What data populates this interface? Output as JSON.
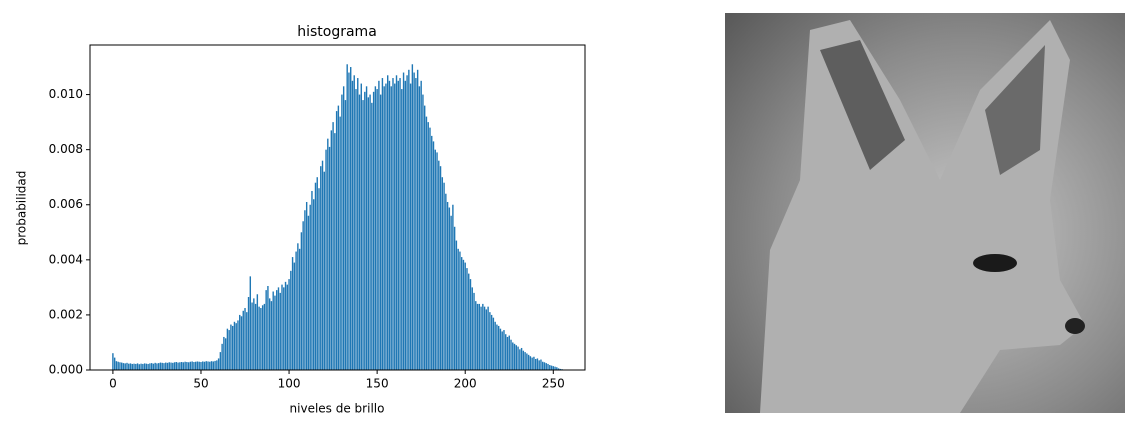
{
  "chart_data": {
    "type": "bar",
    "title": "histograma",
    "xlabel": "niveles de brillo",
    "ylabel": "probabilidad",
    "color": "#1f77b4",
    "x": [
      0,
      1,
      2,
      3,
      4,
      5,
      6,
      7,
      8,
      9,
      10,
      11,
      12,
      13,
      14,
      15,
      16,
      17,
      18,
      19,
      20,
      21,
      22,
      23,
      24,
      25,
      26,
      27,
      28,
      29,
      30,
      31,
      32,
      33,
      34,
      35,
      36,
      37,
      38,
      39,
      40,
      41,
      42,
      43,
      44,
      45,
      46,
      47,
      48,
      49,
      50,
      51,
      52,
      53,
      54,
      55,
      56,
      57,
      58,
      59,
      60,
      61,
      62,
      63,
      64,
      65,
      66,
      67,
      68,
      69,
      70,
      71,
      72,
      73,
      74,
      75,
      76,
      77,
      78,
      79,
      80,
      81,
      82,
      83,
      84,
      85,
      86,
      87,
      88,
      89,
      90,
      91,
      92,
      93,
      94,
      95,
      96,
      97,
      98,
      99,
      100,
      101,
      102,
      103,
      104,
      105,
      106,
      107,
      108,
      109,
      110,
      111,
      112,
      113,
      114,
      115,
      116,
      117,
      118,
      119,
      120,
      121,
      122,
      123,
      124,
      125,
      126,
      127,
      128,
      129,
      130,
      131,
      132,
      133,
      134,
      135,
      136,
      137,
      138,
      139,
      140,
      141,
      142,
      143,
      144,
      145,
      146,
      147,
      148,
      149,
      150,
      151,
      152,
      153,
      154,
      155,
      156,
      157,
      158,
      159,
      160,
      161,
      162,
      163,
      164,
      165,
      166,
      167,
      168,
      169,
      170,
      171,
      172,
      173,
      174,
      175,
      176,
      177,
      178,
      179,
      180,
      181,
      182,
      183,
      184,
      185,
      186,
      187,
      188,
      189,
      190,
      191,
      192,
      193,
      194,
      195,
      196,
      197,
      198,
      199,
      200,
      201,
      202,
      203,
      204,
      205,
      206,
      207,
      208,
      209,
      210,
      211,
      212,
      213,
      214,
      215,
      216,
      217,
      218,
      219,
      220,
      221,
      222,
      223,
      224,
      225,
      226,
      227,
      228,
      229,
      230,
      231,
      232,
      233,
      234,
      235,
      236,
      237,
      238,
      239,
      240,
      241,
      242,
      243,
      244,
      245,
      246,
      247,
      248,
      249,
      250,
      251,
      252,
      253,
      254,
      255
    ],
    "values": [
      0.00061,
      0.00045,
      0.00032,
      0.0003,
      0.00028,
      0.00027,
      0.00025,
      0.00024,
      0.00026,
      0.00023,
      0.00024,
      0.00022,
      0.00023,
      0.00022,
      0.00024,
      0.00021,
      0.00023,
      0.00022,
      0.00024,
      0.00023,
      0.00022,
      0.00024,
      0.00025,
      0.00023,
      0.00026,
      0.00024,
      0.00025,
      0.00027,
      0.00026,
      0.00025,
      0.00027,
      0.00026,
      0.00028,
      0.00027,
      0.00026,
      0.00028,
      0.00029,
      0.00027,
      0.00028,
      0.00029,
      0.00028,
      0.0003,
      0.00029,
      0.00028,
      0.0003,
      0.00031,
      0.00029,
      0.0003,
      0.00031,
      0.0003,
      0.00029,
      0.00031,
      0.0003,
      0.00032,
      0.00031,
      0.0003,
      0.00032,
      0.00031,
      0.00033,
      0.00035,
      0.00042,
      0.00065,
      0.00095,
      0.0012,
      0.00115,
      0.0015,
      0.00145,
      0.00165,
      0.0016,
      0.00175,
      0.0017,
      0.0018,
      0.002,
      0.00195,
      0.00215,
      0.00225,
      0.0021,
      0.00265,
      0.0034,
      0.00245,
      0.0026,
      0.0024,
      0.00275,
      0.0023,
      0.00225,
      0.00235,
      0.0024,
      0.0029,
      0.00305,
      0.0026,
      0.0025,
      0.00285,
      0.0027,
      0.0029,
      0.003,
      0.0028,
      0.0031,
      0.003,
      0.0032,
      0.0031,
      0.0033,
      0.0036,
      0.0041,
      0.0039,
      0.0043,
      0.0046,
      0.0044,
      0.005,
      0.0054,
      0.0058,
      0.0061,
      0.0056,
      0.006,
      0.0065,
      0.0062,
      0.0068,
      0.007,
      0.0066,
      0.0074,
      0.0076,
      0.0072,
      0.008,
      0.0084,
      0.0081,
      0.0087,
      0.009,
      0.0086,
      0.0094,
      0.0096,
      0.0092,
      0.01,
      0.0103,
      0.0098,
      0.0111,
      0.0108,
      0.011,
      0.0105,
      0.0107,
      0.0102,
      0.0106,
      0.01,
      0.0104,
      0.0098,
      0.0101,
      0.0103,
      0.0099,
      0.01,
      0.0097,
      0.0101,
      0.0103,
      0.0102,
      0.0105,
      0.01,
      0.0106,
      0.0103,
      0.0104,
      0.0107,
      0.0105,
      0.0103,
      0.0106,
      0.0104,
      0.0107,
      0.0105,
      0.0106,
      0.0102,
      0.0108,
      0.0105,
      0.0107,
      0.0109,
      0.0104,
      0.0111,
      0.0108,
      0.0106,
      0.0109,
      0.0103,
      0.0105,
      0.01,
      0.0096,
      0.0092,
      0.009,
      0.0088,
      0.0085,
      0.0083,
      0.008,
      0.0079,
      0.0076,
      0.0074,
      0.007,
      0.0068,
      0.0064,
      0.0061,
      0.0059,
      0.0056,
      0.006,
      0.0052,
      0.0047,
      0.0044,
      0.0043,
      0.0041,
      0.004,
      0.0039,
      0.0037,
      0.0035,
      0.0033,
      0.003,
      0.0028,
      0.0025,
      0.0024,
      0.0024,
      0.0023,
      0.0024,
      0.0023,
      0.0022,
      0.0023,
      0.0021,
      0.002,
      0.0019,
      0.00175,
      0.00165,
      0.0016,
      0.0015,
      0.0014,
      0.00145,
      0.0013,
      0.0012,
      0.00125,
      0.0011,
      0.001,
      0.00095,
      0.0009,
      0.00085,
      0.00075,
      0.0008,
      0.0007,
      0.00065,
      0.0006,
      0.00055,
      0.0005,
      0.00045,
      0.00048,
      0.0004,
      0.00042,
      0.00035,
      0.00038,
      0.0003,
      0.00028,
      0.00025,
      0.00022,
      0.00018,
      0.00016,
      0.00014,
      0.00012,
      0.0001,
      6e-05,
      4e-05,
      3e-05
    ],
    "xlim": [
      -13,
      268
    ],
    "xticks": [
      0,
      50,
      100,
      150,
      200,
      250
    ],
    "ylim": [
      0,
      0.0118
    ],
    "yticks": [
      {
        "value": 0,
        "label": "0.000"
      },
      {
        "value": 0.002,
        "label": "0.002"
      },
      {
        "value": 0.004,
        "label": "0.004"
      },
      {
        "value": 0.006,
        "label": "0.006"
      },
      {
        "value": 0.008,
        "label": "0.008"
      },
      {
        "value": 0.01,
        "label": "0.010"
      }
    ],
    "grid": false
  }
}
